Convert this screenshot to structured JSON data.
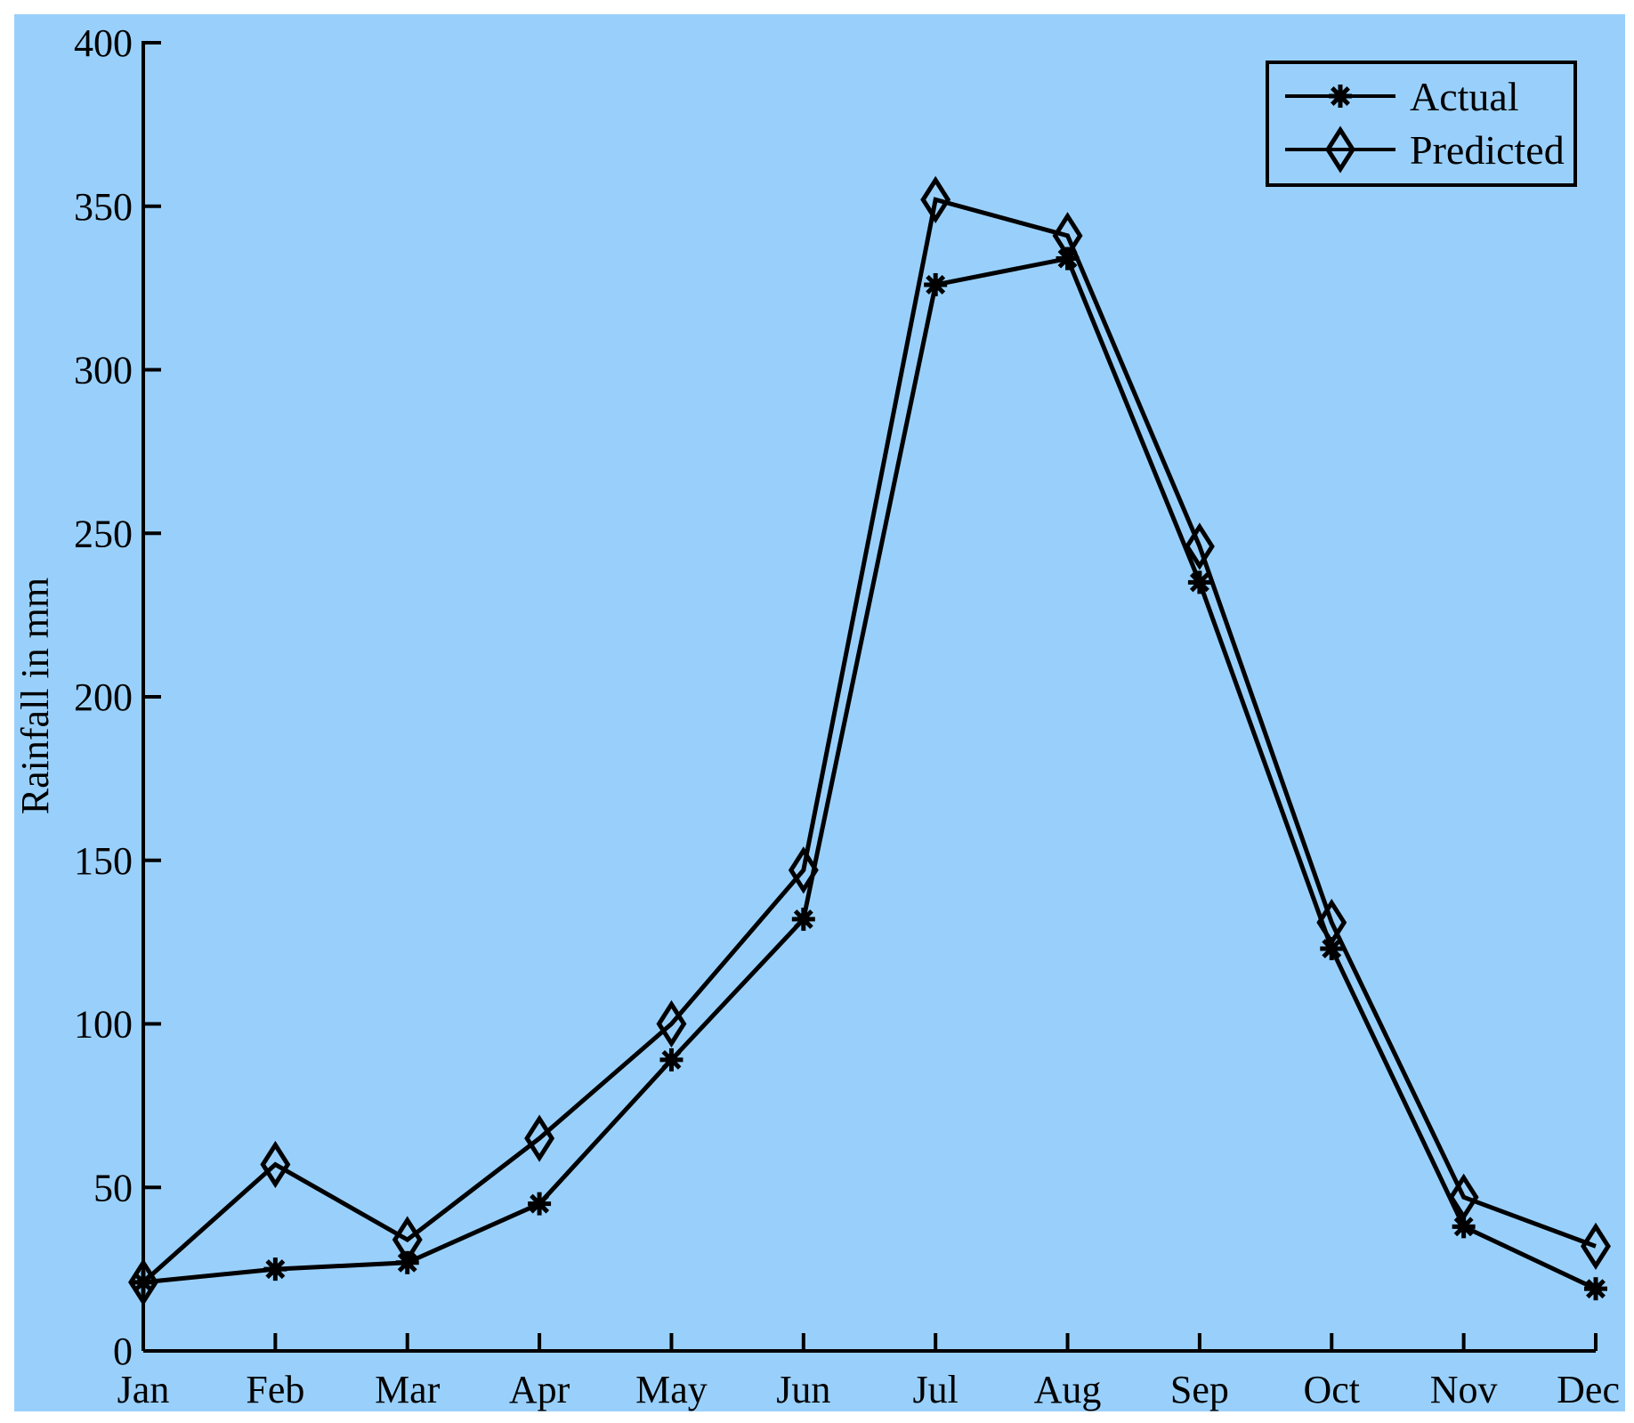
{
  "chart_data": {
    "type": "line",
    "title": "",
    "xlabel": "",
    "ylabel": "Rainfall in mm",
    "categories": [
      "Jan",
      "Feb",
      "Mar",
      "Apr",
      "May",
      "Jun",
      "Jul",
      "Aug",
      "Sep",
      "Oct",
      "Nov",
      "Dec"
    ],
    "yticks": [
      "0",
      "50",
      "100",
      "150",
      "200",
      "250",
      "300",
      "350",
      "400"
    ],
    "ylim": [
      0,
      400
    ],
    "grid": false,
    "legend_position": "top-right",
    "background_color": "#99d0fb",
    "line_color": "#000000",
    "series": [
      {
        "name": "Actual",
        "marker": "asterisk",
        "values": [
          21,
          25,
          27,
          45,
          89,
          132,
          326,
          334,
          235,
          123,
          38,
          19
        ]
      },
      {
        "name": "Predicted",
        "marker": "diamond",
        "values": [
          21,
          57,
          34,
          65,
          100,
          147,
          352,
          341,
          246,
          131,
          47,
          32
        ]
      }
    ]
  }
}
